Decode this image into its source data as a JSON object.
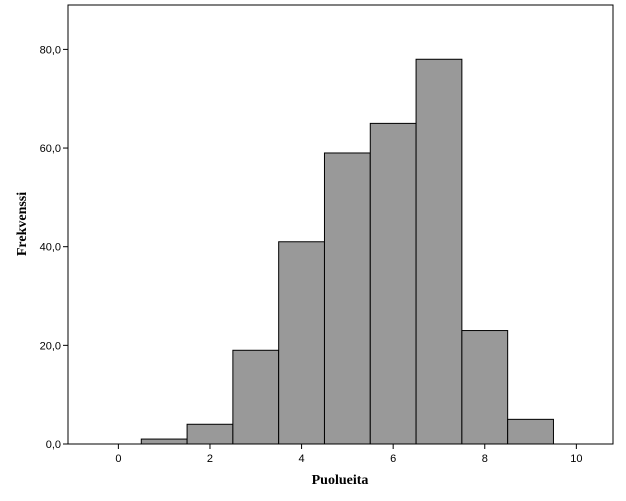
{
  "chart_data": {
    "type": "bar",
    "subtype": "histogram",
    "xlabel": "Puolueita",
    "ylabel": "Frekvenssi",
    "title": "",
    "bin_width": 1,
    "bins": [
      {
        "center": 1,
        "value": 1
      },
      {
        "center": 2,
        "value": 4
      },
      {
        "center": 3,
        "value": 19
      },
      {
        "center": 4,
        "value": 41
      },
      {
        "center": 5,
        "value": 59
      },
      {
        "center": 6,
        "value": 65
      },
      {
        "center": 7,
        "value": 78
      },
      {
        "center": 8,
        "value": 23
      },
      {
        "center": 9,
        "value": 5
      }
    ],
    "xlim": [
      -1.1,
      10.8
    ],
    "ylim": [
      0,
      89
    ],
    "xticks": [
      0,
      2,
      4,
      6,
      8,
      10
    ],
    "xtick_labels": [
      "0",
      "2",
      "4",
      "6",
      "8",
      "10"
    ],
    "yticks": [
      0,
      20,
      40,
      60,
      80
    ],
    "ytick_labels": [
      "0,0",
      "20,0",
      "40,0",
      "60,0",
      "80,0"
    ],
    "grid": false,
    "legend": "none",
    "colors": {
      "bar_fill": "#999999",
      "bar_stroke": "#000000",
      "frame": "#000000",
      "background": "#ffffff"
    }
  }
}
